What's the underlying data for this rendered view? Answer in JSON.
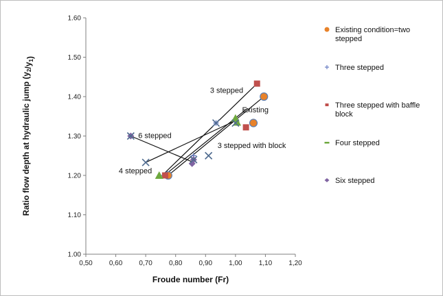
{
  "chart_data": {
    "type": "scatter",
    "xlabel": "Froude number (Fr)",
    "ylabel": "Ratio flow depth at hydraulic jump (y2/y1)",
    "xlim": [
      0.5,
      1.2
    ],
    "ylim": [
      1.0,
      1.6
    ],
    "x_ticks": [
      "0,50",
      "0,60",
      "0,70",
      "0,80",
      "0,90",
      "1,00",
      "1,10",
      "1,20"
    ],
    "y_ticks": [
      "1.00",
      "1.10",
      "1.20",
      "1.30",
      "1.40",
      "1.50",
      "1.60"
    ],
    "grid": false,
    "legend_position": "right",
    "series": [
      {
        "name": "Existing condition=two stepped",
        "color": "#e8822a",
        "marker": "circle",
        "points": [
          [
            0.775,
            1.2
          ],
          [
            1.06,
            1.333
          ],
          [
            1.095,
            1.4
          ]
        ]
      },
      {
        "name": "Three stepped",
        "color": "#6b7fc4",
        "marker": "plus",
        "points": [
          [
            0.76,
            1.2
          ],
          [
            0.86,
            1.25
          ],
          [
            0.935,
            1.333
          ],
          [
            1.005,
            1.333
          ]
        ]
      },
      {
        "name": "Three stepped with baffle block",
        "color": "#c0504d",
        "marker": "square",
        "points": [
          [
            0.765,
            1.2
          ],
          [
            1.035,
            1.322
          ],
          [
            1.072,
            1.433
          ]
        ]
      },
      {
        "name": "Four stepped",
        "color": "#6ea83e",
        "marker": "triangle",
        "points": [
          [
            0.745,
            1.2
          ],
          [
            1.0,
            1.345
          ],
          [
            1.005,
            1.335
          ]
        ]
      },
      {
        "name": "Six stepped",
        "color": "#8064a2",
        "marker": "diamond",
        "points": [
          [
            0.65,
            1.3
          ],
          [
            0.855,
            1.23
          ],
          [
            0.86,
            1.24
          ]
        ]
      }
    ],
    "extra_markers": [
      {
        "marker": "x",
        "color": "#4f6b8f",
        "points": [
          [
            0.65,
            1.3
          ],
          [
            0.7,
            1.233
          ],
          [
            0.86,
            1.24
          ],
          [
            0.935,
            1.333
          ],
          [
            0.91,
            1.25
          ],
          [
            1.0,
            1.333
          ]
        ]
      }
    ],
    "trend_lines": [
      {
        "label": "6 stepped",
        "from": [
          0.65,
          1.3
        ],
        "to": [
          0.86,
          1.233
        ]
      },
      {
        "label": "4  stepped",
        "from": [
          0.7,
          1.233
        ],
        "to": [
          1.003,
          1.34
        ]
      },
      {
        "label": "3 stepped",
        "from": [
          0.755,
          1.2
        ],
        "to": [
          1.072,
          1.433
        ]
      },
      {
        "label": "Existing",
        "from": [
          0.775,
          1.2
        ],
        "to": [
          1.095,
          1.4
        ]
      },
      {
        "label": "3 stepped with block",
        "from": [
          0.762,
          1.2
        ],
        "to": [
          1.04,
          1.37
        ]
      }
    ],
    "annotations": [
      {
        "text": "3 stepped",
        "x": 0.915,
        "y": 1.41
      },
      {
        "text": "Existing",
        "x": 1.022,
        "y": 1.36
      },
      {
        "text": "6 stepped",
        "x": 0.675,
        "y": 1.295
      },
      {
        "text": "3 stepped with block",
        "x": 0.94,
        "y": 1.27
      },
      {
        "text": "4  stepped",
        "x": 0.61,
        "y": 1.205
      }
    ]
  }
}
